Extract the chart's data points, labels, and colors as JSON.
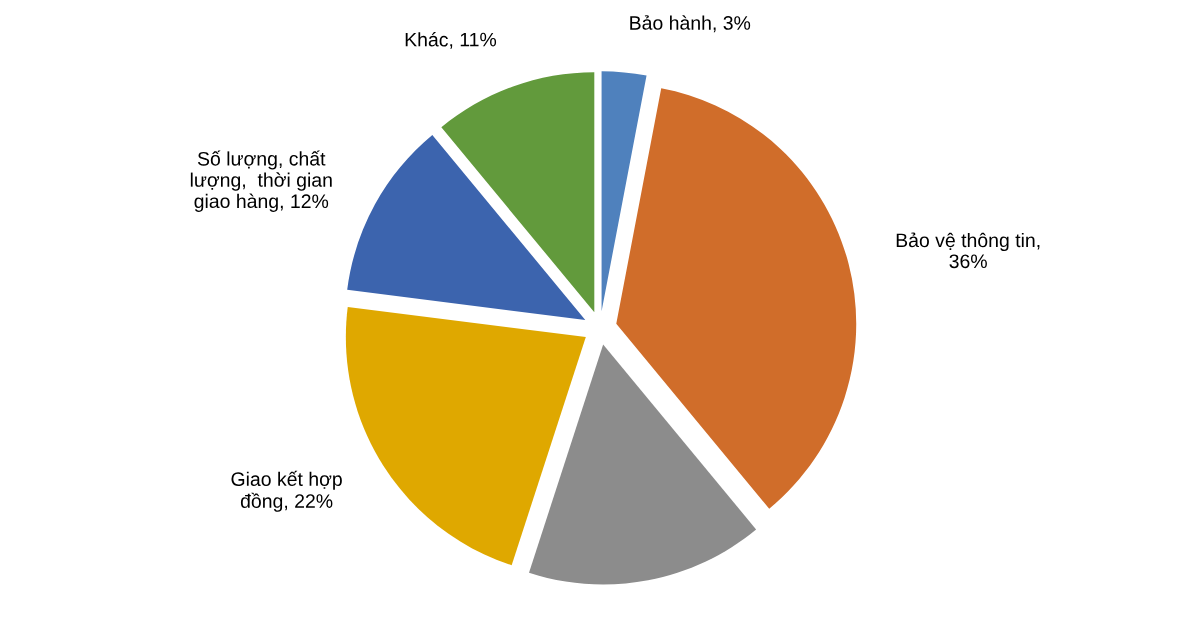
{
  "chart_data": {
    "type": "pie",
    "categories": [
      "Bảo hành, 3%",
      "Bảo vệ thông tin, 36%",
      null,
      "Giao kết hợp đồng, 22%",
      "Số lượng, chất lượng,  thời gian giao hàng, 12%",
      "Khác, 11%"
    ],
    "values": [
      3,
      36,
      16,
      22,
      12,
      11
    ],
    "colors": [
      "#4f81bd",
      "#d06d2a",
      "#8c8c8c",
      "#dfa800",
      "#3c64ae",
      "#629a3c"
    ]
  }
}
